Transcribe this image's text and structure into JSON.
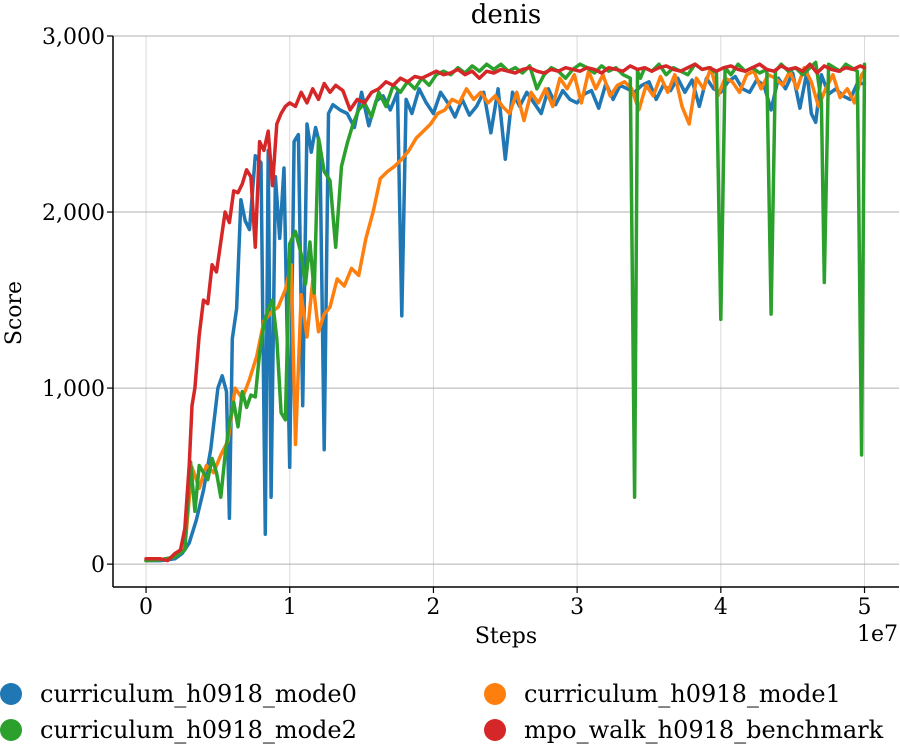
{
  "chart_data": {
    "type": "line",
    "title": "denis",
    "xlabel": "Steps",
    "ylabel": "Score",
    "x_scale_label": "1e7",
    "xlim": [
      -2300000,
      52400000
    ],
    "ylim": [
      -130,
      3000
    ],
    "x_ticks": [
      0,
      10000000,
      20000000,
      30000000,
      40000000,
      50000000
    ],
    "x_tick_labels": [
      "0",
      "1",
      "2",
      "3",
      "4",
      "5"
    ],
    "y_ticks": [
      0,
      1000,
      2000,
      3000
    ],
    "y_tick_labels": [
      "0",
      "1,000",
      "2,000",
      "3,000"
    ],
    "grid": true,
    "legend_position": "bottom",
    "series": [
      {
        "name": "curriculum_h0918_mode0",
        "color": "#1f77b4",
        "x": [
          0,
          1000000,
          2000000,
          2500000,
          3000000,
          3500000,
          4000000,
          4500000,
          5000000,
          5300000,
          5600000,
          5800000,
          6000000,
          6300000,
          6600000,
          6900000,
          7200000,
          7600000,
          8000000,
          8300000,
          8500000,
          8700000,
          9000000,
          9300000,
          9600000,
          10000000,
          10300000,
          10600000,
          10900000,
          11200000,
          11500000,
          11800000,
          12100000,
          12400000,
          12700000,
          13000000,
          13500000,
          14000000,
          14500000,
          15000000,
          15500000,
          16000000,
          16500000,
          17000000,
          17500000,
          17800000,
          18100000,
          18500000,
          19000000,
          19500000,
          20000000,
          20500000,
          21000000,
          21500000,
          22000000,
          22500000,
          23000000,
          23500000,
          24000000,
          24500000,
          25000000,
          25500000,
          26000000,
          26500000,
          27000000,
          27500000,
          28000000,
          28500000,
          29000000,
          29500000,
          30000000,
          30500000,
          31000000,
          31500000,
          32000000,
          32500000,
          33000000,
          33500000,
          34000000,
          34500000,
          35000000,
          35500000,
          36000000,
          36500000,
          37000000,
          37500000,
          38000000,
          38500000,
          39000000,
          39500000,
          40000000,
          40500000,
          41000000,
          41500000,
          42000000,
          42500000,
          43000000,
          43500000,
          44000000,
          44500000,
          45000000,
          45500000,
          46000000,
          46300000,
          46600000,
          47000000,
          47500000,
          48000000,
          48500000,
          49000000,
          49500000,
          50000000
        ],
        "y": [
          20,
          20,
          30,
          60,
          120,
          250,
          420,
          650,
          1000,
          1070,
          980,
          260,
          1280,
          1450,
          2070,
          1950,
          1900,
          2320,
          2280,
          170,
          2350,
          380,
          2200,
          1850,
          2250,
          550,
          2400,
          2440,
          900,
          2500,
          2340,
          2480,
          2380,
          650,
          2560,
          2610,
          2580,
          2560,
          2480,
          2680,
          2490,
          2630,
          2660,
          2580,
          2680,
          1410,
          2640,
          2560,
          2700,
          2620,
          2560,
          2680,
          2620,
          2540,
          2640,
          2550,
          2600,
          2680,
          2450,
          2700,
          2300,
          2680,
          2600,
          2680,
          2620,
          2560,
          2700,
          2610,
          2690,
          2640,
          2620,
          2670,
          2690,
          2590,
          2730,
          2640,
          2720,
          2700,
          2680,
          2720,
          2740,
          2640,
          2720,
          2690,
          2760,
          2680,
          2750,
          2600,
          2760,
          2700,
          2680,
          2740,
          2770,
          2700,
          2680,
          2750,
          2720,
          2580,
          2760,
          2700,
          2790,
          2590,
          2800,
          2560,
          2510,
          2780,
          2670,
          2700,
          2660,
          2640,
          2730,
          2730
        ]
      },
      {
        "name": "curriculum_h0918_mode1",
        "color": "#ff7f0e",
        "x": [
          0,
          1000000,
          2000000,
          2700000,
          3200000,
          3700000,
          4200000,
          4700000,
          5200000,
          5700000,
          6200000,
          6700000,
          7200000,
          7700000,
          8200000,
          8700000,
          9200000,
          9700000,
          10100000,
          10400000,
          10800000,
          11200000,
          11600000,
          12000000,
          12400000,
          12800000,
          13300000,
          13800000,
          14300000,
          14800000,
          15300000,
          15800000,
          16300000,
          16800000,
          17300000,
          17800000,
          18300000,
          18800000,
          19300000,
          19800000,
          20300000,
          20800000,
          21300000,
          21800000,
          22300000,
          22800000,
          23300000,
          23800000,
          24300000,
          24800000,
          25300000,
          25800000,
          26300000,
          26800000,
          27300000,
          27800000,
          28300000,
          28800000,
          29300000,
          29800000,
          30300000,
          30800000,
          31300000,
          31800000,
          32300000,
          32800000,
          33300000,
          33800000,
          34300000,
          34800000,
          35300000,
          35800000,
          36300000,
          36800000,
          37300000,
          37800000,
          38300000,
          38800000,
          39300000,
          39800000,
          40300000,
          40800000,
          41300000,
          41800000,
          42300000,
          42800000,
          43300000,
          43800000,
          44300000,
          44800000,
          45300000,
          45800000,
          46300000,
          46800000,
          47300000,
          47800000,
          48300000,
          48800000,
          49300000,
          49800000,
          50000000
        ],
        "y": [
          20,
          25,
          40,
          90,
          550,
          430,
          560,
          520,
          620,
          700,
          1000,
          940,
          1050,
          1180,
          1380,
          1430,
          1460,
          1560,
          1700,
          680,
          1530,
          1290,
          1610,
          1320,
          1420,
          1460,
          1620,
          1580,
          1680,
          1640,
          1850,
          2000,
          2190,
          2230,
          2260,
          2300,
          2350,
          2420,
          2460,
          2500,
          2560,
          2580,
          2640,
          2620,
          2700,
          2640,
          2680,
          2620,
          2660,
          2600,
          2560,
          2680,
          2520,
          2680,
          2620,
          2700,
          2600,
          2760,
          2700,
          2780,
          2620,
          2800,
          2700,
          2780,
          2660,
          2720,
          2740,
          2700,
          2580,
          2720,
          2660,
          2770,
          2680,
          2780,
          2600,
          2500,
          2760,
          2700,
          2820,
          2660,
          2760,
          2740,
          2680,
          2780,
          2800,
          2700,
          2780,
          2760,
          2720,
          2800,
          2700,
          2820,
          2740,
          2600,
          2700,
          2780,
          2650,
          2700,
          2620,
          2780,
          2800
        ]
      },
      {
        "name": "curriculum_h0918_mode2",
        "color": "#2ca02c",
        "x": [
          0,
          1000000,
          2000000,
          2700000,
          3100000,
          3400000,
          3700000,
          4000000,
          4300000,
          4600000,
          4900000,
          5200000,
          5500000,
          5800000,
          6100000,
          6400000,
          6700000,
          7000000,
          7300000,
          7600000,
          7900000,
          8200000,
          8500000,
          8800000,
          9100000,
          9400000,
          9700000,
          10000000,
          10400000,
          10800000,
          11100000,
          11400000,
          11700000,
          12000000,
          12400000,
          12800000,
          13200000,
          13600000,
          14000000,
          14400000,
          14800000,
          15200000,
          15700000,
          16200000,
          16700000,
          17200000,
          17700000,
          18200000,
          18700000,
          19200000,
          19700000,
          20200000,
          20700000,
          21200000,
          21700000,
          22200000,
          22700000,
          23200000,
          23700000,
          24200000,
          24700000,
          25200000,
          25700000,
          26200000,
          26700000,
          27200000,
          27700000,
          28200000,
          28700000,
          29200000,
          29700000,
          30200000,
          30700000,
          31200000,
          31700000,
          32200000,
          32700000,
          33200000,
          33700000,
          34000000,
          34200000,
          34400000,
          34700000,
          35200000,
          35700000,
          36200000,
          36700000,
          37200000,
          37700000,
          38200000,
          38700000,
          39200000,
          39700000,
          40000000,
          40300000,
          40700000,
          41200000,
          41700000,
          42200000,
          42700000,
          43200000,
          43500000,
          43800000,
          44200000,
          44700000,
          45200000,
          45700000,
          46200000,
          46600000,
          47000000,
          47200000,
          47500000,
          47900000,
          48300000,
          48700000,
          49100000,
          49500000,
          49800000,
          50000000
        ],
        "y": [
          20,
          25,
          40,
          80,
          580,
          300,
          560,
          520,
          480,
          600,
          520,
          380,
          620,
          800,
          920,
          780,
          980,
          890,
          960,
          950,
          1200,
          1360,
          1450,
          1500,
          1280,
          860,
          820,
          1820,
          1890,
          1760,
          1590,
          1830,
          1540,
          2420,
          2230,
          2180,
          1800,
          2260,
          2390,
          2500,
          2580,
          2620,
          2540,
          2680,
          2600,
          2720,
          2680,
          2740,
          2700,
          2760,
          2720,
          2780,
          2800,
          2780,
          2820,
          2790,
          2830,
          2800,
          2840,
          2810,
          2840,
          2800,
          2820,
          2790,
          2830,
          2700,
          2780,
          2820,
          2800,
          2760,
          2810,
          2840,
          2820,
          2790,
          2830,
          2800,
          2820,
          2780,
          2760,
          380,
          2800,
          2760,
          2820,
          2800,
          2840,
          2780,
          2820,
          2800,
          2780,
          2840,
          2810,
          2820,
          2790,
          1390,
          2820,
          2780,
          2840,
          2800,
          2820,
          2790,
          2810,
          1420,
          2800,
          2840,
          2800,
          2820,
          2780,
          2820,
          2850,
          2620,
          1600,
          2840,
          2820,
          2800,
          2840,
          2820,
          2800,
          620,
          2840
        ]
      },
      {
        "name": "mpo_walk_h0918_benchmark",
        "color": "#d62728",
        "x": [
          0,
          1000000,
          1500000,
          2000000,
          2400000,
          2700000,
          3000000,
          3200000,
          3400000,
          3700000,
          4000000,
          4300000,
          4600000,
          4900000,
          5200000,
          5500000,
          5800000,
          6100000,
          6400000,
          6700000,
          7000000,
          7300000,
          7600000,
          7900000,
          8200000,
          8500000,
          8800000,
          9100000,
          9400000,
          9700000,
          10000000,
          10400000,
          10800000,
          11200000,
          11600000,
          12000000,
          12400000,
          12800000,
          13200000,
          13700000,
          14200000,
          14700000,
          15200000,
          15700000,
          16200000,
          16700000,
          17200000,
          17700000,
          18200000,
          18700000,
          19200000,
          19700000,
          20200000,
          20700000,
          21200000,
          21700000,
          22200000,
          22700000,
          23200000,
          23700000,
          24200000,
          24700000,
          25200000,
          25700000,
          26200000,
          26700000,
          27200000,
          27700000,
          28200000,
          28700000,
          29200000,
          29700000,
          30200000,
          30700000,
          31200000,
          31700000,
          32200000,
          32700000,
          33200000,
          33700000,
          34200000,
          34700000,
          35200000,
          35700000,
          36200000,
          36700000,
          37200000,
          37700000,
          38200000,
          38700000,
          39200000,
          39700000,
          40200000,
          40700000,
          41200000,
          41700000,
          42200000,
          42700000,
          43200000,
          43700000,
          44200000,
          44700000,
          45200000,
          45700000,
          46200000,
          46700000,
          47200000,
          47700000,
          48200000,
          48700000,
          49200000,
          49700000,
          50000000
        ],
        "y": [
          30,
          30,
          20,
          60,
          80,
          200,
          560,
          900,
          1000,
          1300,
          1500,
          1480,
          1700,
          1660,
          1830,
          2000,
          1940,
          2120,
          2110,
          2160,
          2240,
          2200,
          1800,
          2400,
          2350,
          2460,
          2150,
          2500,
          2560,
          2600,
          2620,
          2600,
          2680,
          2620,
          2700,
          2640,
          2730,
          2680,
          2720,
          2690,
          2580,
          2640,
          2620,
          2680,
          2700,
          2740,
          2720,
          2760,
          2740,
          2770,
          2760,
          2780,
          2800,
          2780,
          2790,
          2810,
          2780,
          2800,
          2760,
          2800,
          2790,
          2810,
          2800,
          2790,
          2810,
          2820,
          2800,
          2790,
          2810,
          2800,
          2820,
          2810,
          2800,
          2820,
          2810,
          2790,
          2820,
          2810,
          2800,
          2830,
          2810,
          2820,
          2800,
          2820,
          2830,
          2810,
          2800,
          2820,
          2840,
          2810,
          2820,
          2800,
          2820,
          2830,
          2810,
          2800,
          2820,
          2840,
          2810,
          2800,
          2830,
          2810,
          2820,
          2800,
          2840,
          2790,
          2830,
          2810,
          2800,
          2820,
          2810,
          2830,
          2820
        ]
      }
    ]
  }
}
